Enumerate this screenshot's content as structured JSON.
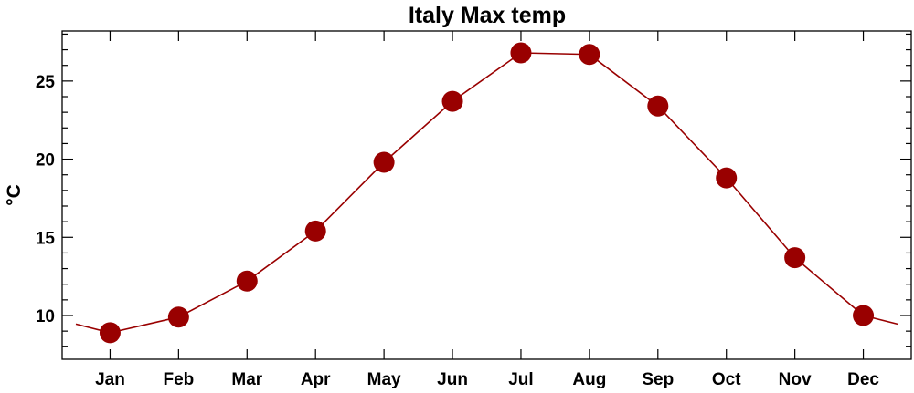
{
  "chart_data": {
    "type": "line",
    "title": "Italy Max temp",
    "xlabel": "",
    "ylabel": "°C",
    "categories": [
      "Jan",
      "Feb",
      "Mar",
      "Apr",
      "May",
      "Jun",
      "Jul",
      "Aug",
      "Sep",
      "Oct",
      "Nov",
      "Dec"
    ],
    "series": [
      {
        "values": [
          8.9,
          9.9,
          12.2,
          15.4,
          19.8,
          23.7,
          26.8,
          26.7,
          23.4,
          18.8,
          13.7,
          10.0
        ],
        "color": "#990000"
      }
    ],
    "yticks": [
      10,
      15,
      20,
      25
    ],
    "ylim": [
      7.2,
      28.2
    ],
    "grid": false,
    "legend": "none"
  }
}
